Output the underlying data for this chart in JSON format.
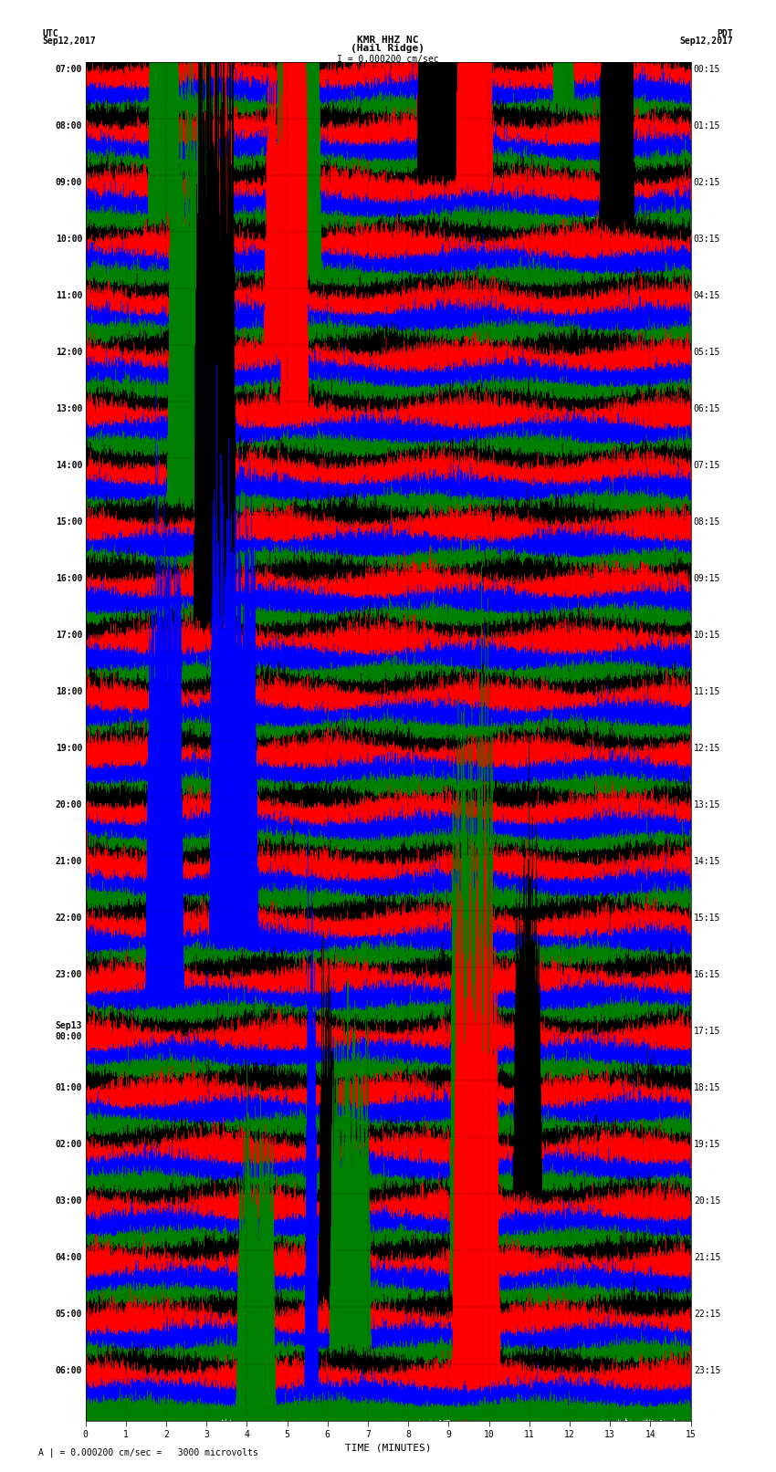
{
  "title_line1": "KMR HHZ NC",
  "title_line2": "(Hail Ridge)",
  "scale_label": "I = 0.000200 cm/sec",
  "footer_label": "A | = 0.000200 cm/sec =   3000 microvolts",
  "xlabel": "TIME (MINUTES)",
  "left_times_labeled": [
    "07:00",
    "08:00",
    "09:00",
    "10:00",
    "11:00",
    "12:00",
    "13:00",
    "14:00",
    "15:00",
    "16:00",
    "17:00",
    "18:00",
    "19:00",
    "20:00",
    "21:00",
    "22:00",
    "23:00",
    "Sep13\n00:00",
    "01:00",
    "02:00",
    "03:00",
    "04:00",
    "05:00",
    "06:00"
  ],
  "right_times_labeled": [
    "00:15",
    "01:15",
    "02:15",
    "03:15",
    "04:15",
    "05:15",
    "06:15",
    "07:15",
    "08:15",
    "09:15",
    "10:15",
    "11:15",
    "12:15",
    "13:15",
    "14:15",
    "15:15",
    "16:15",
    "17:15",
    "18:15",
    "19:15",
    "20:15",
    "21:15",
    "22:15",
    "23:15"
  ],
  "colors": [
    "black",
    "red",
    "blue",
    "green"
  ],
  "num_groups": 24,
  "traces_per_group": 4,
  "time_minutes": 15,
  "bg_color": "#ffffff",
  "font_size": 7,
  "title_font_size": 8,
  "header_font_size": 7
}
